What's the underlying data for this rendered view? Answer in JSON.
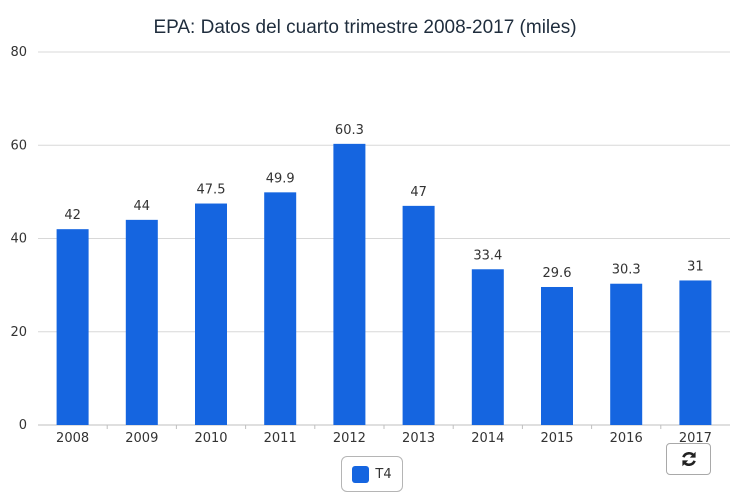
{
  "chart_data": {
    "type": "bar",
    "title": "EPA: Datos del cuarto trimestre 2008-2017 (miles)",
    "categories": [
      "2008",
      "2009",
      "2010",
      "2011",
      "2012",
      "2013",
      "2014",
      "2015",
      "2016",
      "2017"
    ],
    "series": [
      {
        "name": "T4",
        "values": [
          42,
          44,
          47.5,
          49.9,
          60.3,
          47,
          33.4,
          29.6,
          30.3,
          31
        ],
        "color": "#1565e0"
      }
    ],
    "ylim": [
      0,
      80
    ],
    "yticks": [
      0,
      20,
      40,
      60,
      80
    ],
    "grid": true,
    "data_labels": true,
    "legend": {
      "position": "bottom-center"
    }
  },
  "controls": {
    "refresh_icon": "refresh-icon"
  }
}
